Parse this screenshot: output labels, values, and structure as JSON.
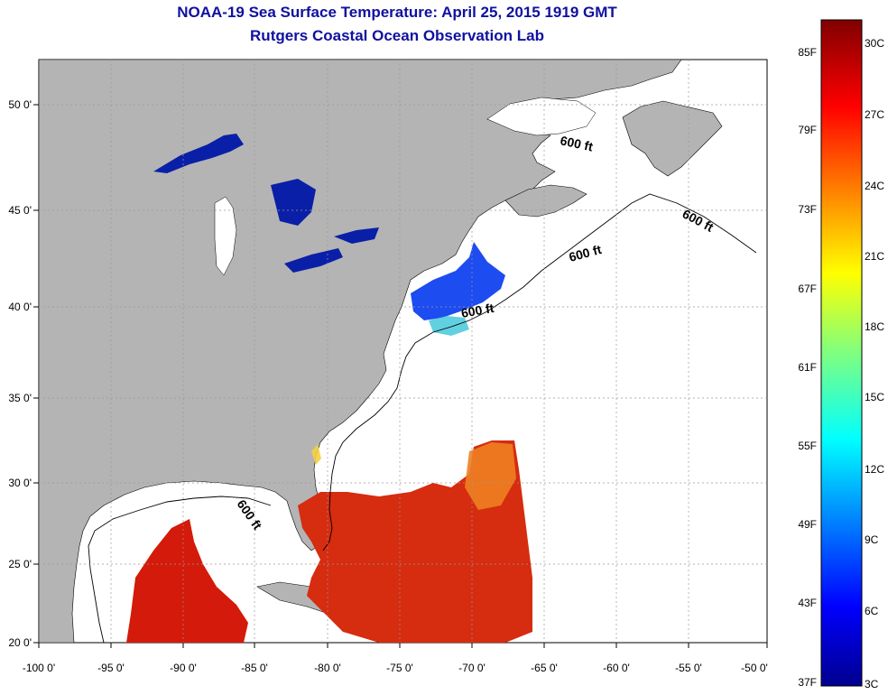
{
  "title_line1": "NOAA-19 Sea Surface Temperature:  April 25, 2015 1919 GMT",
  "title_line2": "Rutgers Coastal Ocean Observation Lab",
  "longitude_ticks": [
    "-100 0'",
    "-95 0'",
    "-90 0'",
    "-85 0'",
    "-80 0'",
    "-75 0'",
    "-70 0'",
    "-65 0'",
    "-60 0'",
    "-55 0'",
    "-50 0'"
  ],
  "latitude_ticks": [
    "50 0'",
    "45 0'",
    "40 0'",
    "35 0'",
    "30 0'",
    "25 0'",
    "20 0'"
  ],
  "depth_contour_label": "600 ft",
  "colorbar": {
    "fahrenheit_labels": [
      "85F",
      "79F",
      "73F",
      "67F",
      "61F",
      "55F",
      "49F",
      "43F",
      "37F"
    ],
    "celsius_labels": [
      "30C",
      "27C",
      "24C",
      "21C",
      "18C",
      "15C",
      "12C",
      "9C",
      "6C",
      "3C"
    ]
  },
  "colors": {
    "title": "#1010a0",
    "land": "#b4b4b4",
    "ocean_no_data": "#ffffff",
    "cold": "#0a1fa8",
    "warm": "#d41a0a"
  }
}
